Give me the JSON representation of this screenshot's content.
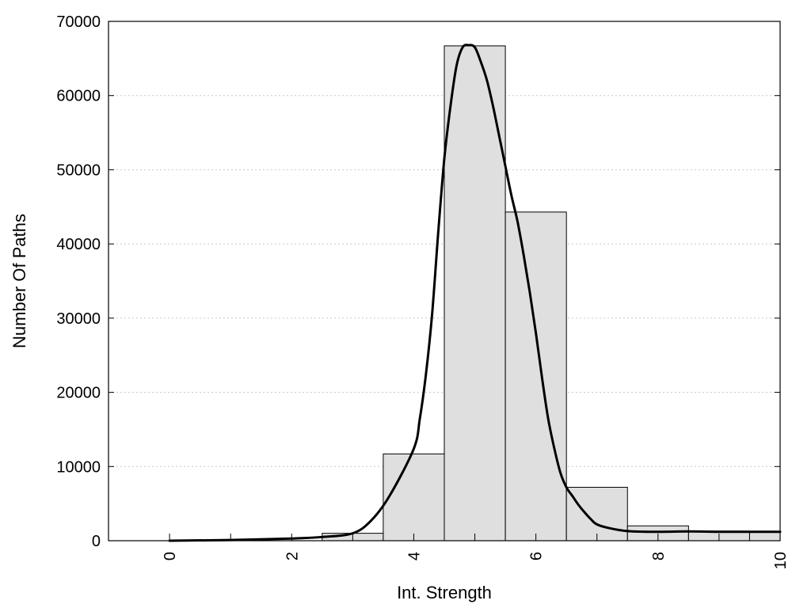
{
  "chart_data": {
    "type": "bar",
    "title": "",
    "xlabel": "Int. Strength",
    "ylabel": "Number Of Paths",
    "xlim": [
      -1,
      10
    ],
    "ylim": [
      0,
      70000
    ],
    "x_ticks": [
      0,
      2,
      4,
      6,
      8,
      10
    ],
    "y_ticks": [
      0,
      10000,
      20000,
      30000,
      40000,
      50000,
      60000,
      70000
    ],
    "grid": "horizontal-dotted",
    "bar_width": 1,
    "bars": [
      {
        "x": 0,
        "value": 0
      },
      {
        "x": 1,
        "value": 0
      },
      {
        "x": 2,
        "value": 0
      },
      {
        "x": 3,
        "value": 1000
      },
      {
        "x": 4,
        "value": 11700
      },
      {
        "x": 5,
        "value": 66700
      },
      {
        "x": 6,
        "value": 44300
      },
      {
        "x": 7,
        "value": 7200
      },
      {
        "x": 8,
        "value": 2000
      },
      {
        "x": 9,
        "value": 1300
      },
      {
        "x": 10,
        "value": 1200
      }
    ],
    "curve": {
      "x": [
        0,
        1,
        2,
        2.5,
        3,
        3.3,
        3.6,
        4,
        4.1,
        4.2,
        4.3,
        4.4,
        4.5,
        4.6,
        4.7,
        4.8,
        4.9,
        5,
        5.1,
        5.2,
        5.3,
        5.4,
        5.5,
        5.6,
        5.7,
        5.8,
        5.9,
        6,
        6.1,
        6.2,
        6.3,
        6.4,
        6.5,
        6.6,
        6.7,
        6.8,
        6.9,
        7,
        7.2,
        7.5,
        8,
        8.5,
        9,
        9.5,
        10
      ],
      "y": [
        0,
        100,
        300,
        500,
        1000,
        2700,
        6000,
        12400,
        16500,
        22500,
        30500,
        41500,
        51500,
        58500,
        64000,
        66500,
        66800,
        66500,
        64500,
        62000,
        58500,
        54500,
        50500,
        46500,
        43000,
        38500,
        33500,
        28000,
        22000,
        16500,
        12500,
        9200,
        7200,
        6000,
        4800,
        3800,
        2900,
        2200,
        1700,
        1300,
        1200,
        1250,
        1200,
        1200,
        1200
      ]
    }
  }
}
